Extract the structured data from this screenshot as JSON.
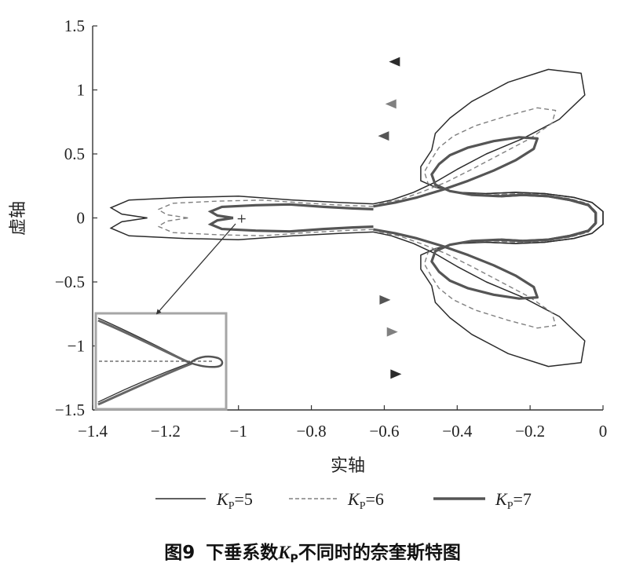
{
  "figure": {
    "caption_prefix": "图9",
    "caption_pre": "下垂系数",
    "caption_k": "K",
    "caption_sub": "P",
    "caption_post": "不同时的奈奎斯特图"
  },
  "chart_data": {
    "type": "line",
    "xlabel": "实轴",
    "ylabel": "虚轴",
    "xlim": [
      -1.4,
      0
    ],
    "ylim": [
      -1.5,
      1.5
    ],
    "xticks": [
      -1.4,
      -1.2,
      -1,
      -0.8,
      -0.6,
      -0.4,
      -0.2,
      0
    ],
    "xtick_labels": [
      "−1.4",
      "−1.2",
      "−1",
      "−0.8",
      "−0.6",
      "−0.4",
      "−0.2",
      "0"
    ],
    "yticks": [
      1.5,
      1,
      0.5,
      0,
      -0.5,
      -1,
      -1.5
    ],
    "ytick_labels": [
      "1.5",
      "1",
      "0.5",
      "0",
      "−0.5",
      "−1",
      "−1.5"
    ],
    "critical_point": [
      -1,
      0
    ],
    "series": [
      {
        "name": "Kp=5",
        "legend_k": "K",
        "legend_sub": "P",
        "legend_eq": "=5",
        "style": "solid",
        "color": "#2b2b2b",
        "points": [
          [
            -0.32,
            -0.19
          ],
          [
            -0.24,
            -0.2
          ],
          [
            -0.16,
            -0.19
          ],
          [
            -0.08,
            -0.16
          ],
          [
            -0.03,
            -0.12
          ],
          [
            0,
            -0.05
          ],
          [
            0,
            0.05
          ],
          [
            -0.03,
            0.12
          ],
          [
            -0.08,
            0.16
          ],
          [
            -0.16,
            0.19
          ],
          [
            -0.24,
            0.2
          ],
          [
            -0.32,
            0.19
          ],
          [
            -0.4,
            0.2
          ],
          [
            -0.46,
            0.24
          ],
          [
            -0.5,
            0.29
          ],
          [
            -0.5,
            0.4
          ],
          [
            -0.47,
            0.53
          ],
          [
            -0.46,
            0.66
          ],
          [
            -0.42,
            0.78
          ],
          [
            -0.36,
            0.91
          ],
          [
            -0.26,
            1.06
          ],
          [
            -0.15,
            1.16
          ],
          [
            -0.06,
            1.13
          ],
          [
            -0.05,
            0.96
          ],
          [
            -0.12,
            0.77
          ],
          [
            -0.22,
            0.62
          ],
          [
            -0.32,
            0.5
          ],
          [
            -0.4,
            0.38
          ],
          [
            -0.46,
            0.28
          ],
          [
            -0.52,
            0.2
          ],
          [
            -0.58,
            0.14
          ],
          [
            -0.63,
            0.11
          ]
        ],
        "arrows": [
          [
            -0.57,
            1.22
          ],
          [
            -0.57,
            -1.22
          ]
        ]
      },
      {
        "name": "Kp=6",
        "legend_k": "K",
        "legend_sub": "P",
        "legend_eq": "=6",
        "style": "dashed",
        "color": "#808080",
        "points": [
          [
            -0.3,
            -0.18
          ],
          [
            -0.23,
            -0.19
          ],
          [
            -0.16,
            -0.18
          ],
          [
            -0.09,
            -0.15
          ],
          [
            -0.04,
            -0.11
          ],
          [
            -0.02,
            -0.05
          ],
          [
            -0.02,
            0.05
          ],
          [
            -0.04,
            0.11
          ],
          [
            -0.09,
            0.15
          ],
          [
            -0.16,
            0.18
          ],
          [
            -0.23,
            0.19
          ],
          [
            -0.3,
            0.18
          ],
          [
            -0.38,
            0.19
          ],
          [
            -0.44,
            0.22
          ],
          [
            -0.48,
            0.27
          ],
          [
            -0.49,
            0.36
          ],
          [
            -0.47,
            0.46
          ],
          [
            -0.45,
            0.55
          ],
          [
            -0.41,
            0.64
          ],
          [
            -0.35,
            0.72
          ],
          [
            -0.26,
            0.8
          ],
          [
            -0.18,
            0.86
          ],
          [
            -0.13,
            0.84
          ],
          [
            -0.14,
            0.74
          ],
          [
            -0.2,
            0.62
          ],
          [
            -0.28,
            0.5
          ],
          [
            -0.36,
            0.38
          ],
          [
            -0.43,
            0.28
          ],
          [
            -0.5,
            0.2
          ],
          [
            -0.56,
            0.14
          ],
          [
            -0.62,
            0.11
          ]
        ],
        "arrows": [
          [
            -0.58,
            0.89
          ],
          [
            -0.58,
            -0.89
          ]
        ]
      },
      {
        "name": "Kp=7",
        "legend_k": "K",
        "legend_sub": "P",
        "legend_eq": "=7",
        "style": "solid",
        "color": "#555555",
        "points": [
          [
            -0.28,
            -0.17
          ],
          [
            -0.22,
            -0.18
          ],
          [
            -0.15,
            -0.17
          ],
          [
            -0.09,
            -0.14
          ],
          [
            -0.04,
            -0.1
          ],
          [
            -0.02,
            -0.04
          ],
          [
            -0.02,
            0.04
          ],
          [
            -0.04,
            0.1
          ],
          [
            -0.09,
            0.14
          ],
          [
            -0.15,
            0.17
          ],
          [
            -0.22,
            0.18
          ],
          [
            -0.28,
            0.17
          ],
          [
            -0.36,
            0.18
          ],
          [
            -0.42,
            0.21
          ],
          [
            -0.46,
            0.26
          ],
          [
            -0.47,
            0.34
          ],
          [
            -0.45,
            0.42
          ],
          [
            -0.42,
            0.49
          ],
          [
            -0.37,
            0.55
          ],
          [
            -0.3,
            0.6
          ],
          [
            -0.23,
            0.63
          ],
          [
            -0.18,
            0.62
          ],
          [
            -0.19,
            0.54
          ],
          [
            -0.24,
            0.45
          ],
          [
            -0.3,
            0.37
          ],
          [
            -0.37,
            0.29
          ],
          [
            -0.44,
            0.22
          ],
          [
            -0.51,
            0.16
          ],
          [
            -0.57,
            0.12
          ],
          [
            -0.63,
            0.09
          ]
        ],
        "arrows": [
          [
            -0.6,
            0.64
          ],
          [
            -0.6,
            -0.64
          ]
        ]
      }
    ]
  }
}
